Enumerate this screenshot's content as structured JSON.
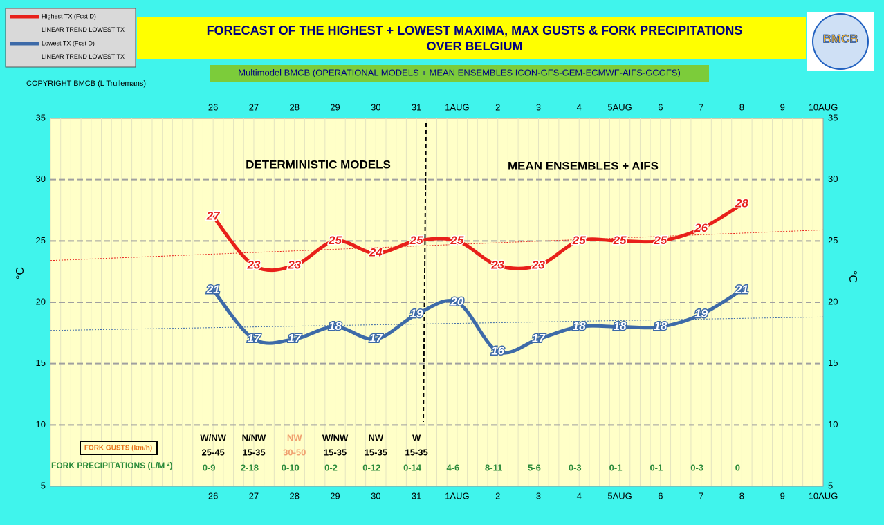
{
  "chart_data": {
    "type": "line",
    "title": [
      "FORECAST OF THE HIGHEST + LOWEST MAXIMA, MAX GUSTS & FORK PRECIPITATIONS",
      "OVER BELGIUM"
    ],
    "subtitle": "Multimodel BMCB (OPERATIONAL MODELS + MEAN ENSEMBLES  ICON-GFS-GEM-ECMWF-AIFS-GCGFS)",
    "copyright": "COPYRIGHT BMCB (L Trullemans)",
    "logo": "BMCB",
    "y_label": "°C",
    "annotations": [
      "DETERMINISTIC MODELS",
      "MEAN ENSEMBLES + AIFS"
    ],
    "categories": [
      null,
      null,
      null,
      null,
      "26",
      "27",
      "28",
      "29",
      "30",
      "31",
      "1AUG",
      "2",
      "3",
      "4",
      "5AUG",
      "6",
      "7",
      "8",
      "9",
      "10AUG"
    ],
    "series": [
      {
        "name": "Highest TX (Fcst D)",
        "color": "#e8201a",
        "values": [
          null,
          null,
          null,
          null,
          27,
          23,
          23,
          25,
          24,
          25,
          25,
          23,
          23,
          25,
          25,
          25,
          26,
          28,
          null,
          null
        ]
      },
      {
        "name": "Lowest TX (Fcst D)",
        "color": "#3d6aa8",
        "values": [
          null,
          null,
          null,
          null,
          21,
          17,
          17,
          18,
          17,
          19,
          20,
          16,
          17,
          18,
          18,
          18,
          19,
          21,
          null,
          null
        ]
      }
    ],
    "trends": [
      {
        "name": "LINEAR TREND LOWEST  TX",
        "color": "#e8201a",
        "values": [
          23.4,
          25.9
        ]
      },
      {
        "name": "LINEAR TREND LOWEST TX",
        "color": "#3d6aa8",
        "values": [
          17.7,
          18.8
        ]
      }
    ],
    "ylim": [
      5,
      35
    ],
    "yticks": [
      5,
      10,
      15,
      20,
      25,
      30,
      35
    ],
    "grid": true,
    "gusts": {
      "title": "FORK GUSTS (km/h)",
      "directions": [
        null,
        null,
        null,
        null,
        "W/NW",
        "N/NW",
        "NW",
        "W/NW",
        "NW",
        "W",
        null,
        null,
        null,
        null,
        null,
        null,
        null,
        null,
        null,
        null
      ],
      "speeds": [
        null,
        null,
        null,
        null,
        "25-45",
        "15-35",
        "30-50",
        "15-35",
        "15-35",
        "15-35",
        null,
        null,
        null,
        null,
        null,
        null,
        null,
        null,
        null,
        null
      ],
      "colors": [
        null,
        null,
        null,
        null,
        "#000000",
        "#000000",
        "#f0a070",
        "#000000",
        "#000000",
        "#000000",
        null,
        null,
        null,
        null,
        null,
        null,
        null,
        null,
        null,
        null
      ]
    },
    "precipitation": {
      "title": "FORK PRECIPITATIONS (L/M ²)",
      "values": [
        null,
        null,
        null,
        null,
        "0-9",
        "2-18",
        "0-10",
        "0-2",
        "0-12",
        "0-14",
        "4-6",
        "8-11",
        "5-6",
        "0-3",
        "0-1",
        "0-1",
        "0-3",
        "0",
        null,
        null
      ],
      "color": "#2a8a3a"
    }
  }
}
